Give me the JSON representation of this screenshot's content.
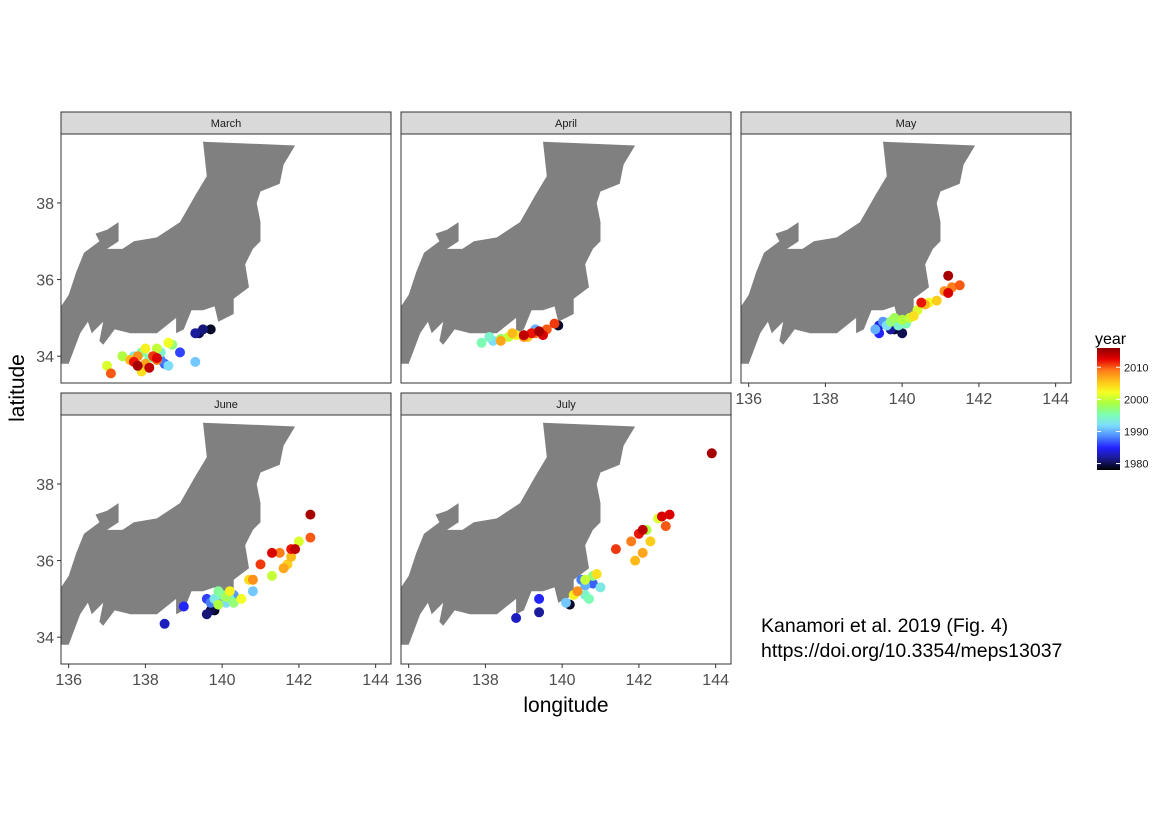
{
  "chart_data": {
    "type": "scatter",
    "xlabel": "longitude",
    "ylabel": "latitude",
    "xlim": [
      135.8,
      144.4
    ],
    "ylim": [
      33.3,
      39.8
    ],
    "x_ticks": [
      136,
      138,
      140,
      142,
      144
    ],
    "y_ticks": [
      34,
      36,
      38
    ],
    "grid": false,
    "color": {
      "variable": "year",
      "range": [
        1978,
        2016
      ],
      "ticks": [
        1980,
        1990,
        2000,
        2010
      ],
      "legend_placement": "right",
      "stops": [
        "#000000",
        "#1a1a8c",
        "#2222ff",
        "#4d88ff",
        "#7ddcff",
        "#7dffb0",
        "#a8ff44",
        "#f5ff22",
        "#ffc21a",
        "#ff7a1a",
        "#e60000",
        "#8c0000"
      ]
    },
    "land_color": "#808080",
    "land_outline": [
      [
        139.5,
        39.6
      ],
      [
        141.9,
        39.5
      ],
      [
        141.6,
        39.0
      ],
      [
        141.5,
        38.5
      ],
      [
        141.0,
        38.3
      ],
      [
        140.9,
        38.0
      ],
      [
        141.0,
        37.5
      ],
      [
        141.0,
        37.0
      ],
      [
        140.8,
        36.8
      ],
      [
        140.6,
        36.4
      ],
      [
        140.7,
        35.8
      ],
      [
        140.3,
        35.5
      ],
      [
        140.3,
        35.1
      ],
      [
        139.9,
        34.9
      ],
      [
        139.8,
        35.3
      ],
      [
        139.5,
        35.2
      ],
      [
        139.2,
        35.2
      ],
      [
        139.0,
        34.7
      ],
      [
        138.8,
        34.6
      ],
      [
        138.8,
        35.0
      ],
      [
        138.3,
        34.6
      ],
      [
        137.6,
        34.6
      ],
      [
        137.2,
        34.7
      ],
      [
        136.9,
        34.3
      ],
      [
        136.8,
        34.4
      ],
      [
        136.9,
        34.9
      ],
      [
        136.6,
        34.6
      ],
      [
        136.5,
        34.9
      ],
      [
        136.3,
        34.6
      ],
      [
        136.0,
        33.8
      ],
      [
        135.8,
        33.8
      ],
      [
        135.8,
        35.3
      ],
      [
        136.0,
        35.6
      ],
      [
        136.2,
        36.2
      ],
      [
        136.4,
        36.7
      ],
      [
        136.8,
        37.0
      ],
      [
        136.7,
        37.2
      ],
      [
        137.0,
        37.3
      ],
      [
        137.3,
        37.5
      ],
      [
        137.3,
        37.0
      ],
      [
        137.0,
        36.8
      ],
      [
        137.4,
        36.8
      ],
      [
        137.7,
        37.0
      ],
      [
        138.3,
        37.1
      ],
      [
        138.9,
        37.5
      ],
      [
        139.3,
        38.2
      ],
      [
        139.6,
        38.7
      ],
      [
        139.5,
        39.6
      ]
    ],
    "panels": [
      {
        "name": "March",
        "points": [
          [
            139.7,
            34.7,
            1979
          ],
          [
            139.4,
            34.6,
            1980
          ],
          [
            139.5,
            34.7,
            1981
          ],
          [
            139.3,
            34.6,
            1982
          ],
          [
            138.9,
            34.1,
            1986
          ],
          [
            138.5,
            33.8,
            1987
          ],
          [
            138.4,
            33.9,
            1988
          ],
          [
            139.3,
            33.85,
            1991
          ],
          [
            138.6,
            33.75,
            1992
          ],
          [
            137.7,
            34.0,
            1993
          ],
          [
            138.4,
            34.1,
            1994
          ],
          [
            138.1,
            33.95,
            1995
          ],
          [
            137.9,
            34.1,
            1996
          ],
          [
            138.7,
            34.3,
            1997
          ],
          [
            137.6,
            33.9,
            1998
          ],
          [
            137.4,
            34.0,
            1999
          ],
          [
            138.3,
            34.2,
            2000
          ],
          [
            137.0,
            33.75,
            2001
          ],
          [
            138.6,
            34.35,
            2002
          ],
          [
            138.0,
            34.2,
            2003
          ],
          [
            137.9,
            33.6,
            2004
          ],
          [
            138.2,
            34.0,
            2005
          ],
          [
            137.6,
            33.9,
            2006
          ],
          [
            138.0,
            33.8,
            2007
          ],
          [
            137.8,
            34.0,
            2008
          ],
          [
            138.3,
            33.9,
            2009
          ],
          [
            137.1,
            33.55,
            2010
          ],
          [
            138.2,
            34.0,
            2011
          ],
          [
            137.7,
            33.85,
            2012
          ],
          [
            138.3,
            33.95,
            2013
          ],
          [
            138.1,
            33.7,
            2014
          ],
          [
            137.8,
            33.75,
            2015
          ]
        ]
      },
      {
        "name": "April",
        "points": [
          [
            139.9,
            34.8,
            1979
          ],
          [
            139.5,
            34.6,
            1985
          ],
          [
            139.3,
            34.7,
            1990
          ],
          [
            138.2,
            34.4,
            1992
          ],
          [
            138.1,
            34.5,
            1994
          ],
          [
            137.9,
            34.35,
            1995
          ],
          [
            138.4,
            34.45,
            1998
          ],
          [
            138.6,
            34.5,
            2000
          ],
          [
            138.8,
            34.55,
            2003
          ],
          [
            139.1,
            34.5,
            2005
          ],
          [
            138.7,
            34.6,
            2006
          ],
          [
            138.4,
            34.4,
            2007
          ],
          [
            139.0,
            34.5,
            2008
          ],
          [
            139.3,
            34.6,
            2009
          ],
          [
            139.6,
            34.7,
            2010
          ],
          [
            139.8,
            34.85,
            2011
          ],
          [
            139.2,
            34.6,
            2012
          ],
          [
            139.5,
            34.55,
            2013
          ],
          [
            139.0,
            34.55,
            2014
          ],
          [
            139.4,
            34.65,
            2015
          ]
        ]
      },
      {
        "name": "May",
        "points": [
          [
            139.8,
            34.7,
            1979
          ],
          [
            140.0,
            34.6,
            1980
          ],
          [
            139.7,
            34.7,
            1982
          ],
          [
            139.4,
            34.8,
            1984
          ],
          [
            139.4,
            34.6,
            1985
          ],
          [
            139.5,
            34.9,
            1989
          ],
          [
            139.3,
            34.7,
            1990
          ],
          [
            139.6,
            34.8,
            1992
          ],
          [
            139.9,
            34.8,
            1994
          ],
          [
            140.1,
            34.85,
            1995
          ],
          [
            139.7,
            34.9,
            1997
          ],
          [
            139.8,
            35.0,
            1998
          ],
          [
            140.0,
            34.95,
            1999
          ],
          [
            140.2,
            35.0,
            2000
          ],
          [
            140.4,
            35.2,
            2001
          ],
          [
            140.7,
            35.4,
            2002
          ],
          [
            140.3,
            35.05,
            2004
          ],
          [
            140.9,
            35.45,
            2005
          ],
          [
            140.6,
            35.35,
            2006
          ],
          [
            141.1,
            35.7,
            2008
          ],
          [
            141.3,
            35.8,
            2009
          ],
          [
            141.5,
            35.85,
            2010
          ],
          [
            140.5,
            35.4,
            2012
          ],
          [
            141.2,
            35.65,
            2013
          ],
          [
            141.2,
            36.1,
            2015
          ]
        ]
      },
      {
        "name": "June",
        "points": [
          [
            139.8,
            34.7,
            1979
          ],
          [
            139.7,
            34.7,
            1980
          ],
          [
            139.6,
            34.6,
            1981
          ],
          [
            138.5,
            34.35,
            1983
          ],
          [
            139.0,
            34.8,
            1985
          ],
          [
            139.6,
            35.0,
            1986
          ],
          [
            139.7,
            34.9,
            1988
          ],
          [
            140.3,
            35.1,
            1989
          ],
          [
            140.8,
            35.2,
            1991
          ],
          [
            140.1,
            34.9,
            1992
          ],
          [
            139.8,
            35.0,
            1993
          ],
          [
            140.2,
            35.0,
            1994
          ],
          [
            140.0,
            35.1,
            1995
          ],
          [
            139.9,
            35.2,
            1996
          ],
          [
            140.3,
            34.9,
            1997
          ],
          [
            140.1,
            35.05,
            1998
          ],
          [
            139.9,
            34.85,
            1999
          ],
          [
            141.3,
            35.6,
            2000
          ],
          [
            142.0,
            36.5,
            2001
          ],
          [
            140.5,
            35.0,
            2002
          ],
          [
            140.2,
            35.2,
            2003
          ],
          [
            140.7,
            35.5,
            2004
          ],
          [
            141.7,
            35.9,
            2005
          ],
          [
            141.8,
            36.1,
            2006
          ],
          [
            141.6,
            35.8,
            2007
          ],
          [
            140.8,
            35.5,
            2008
          ],
          [
            141.5,
            36.2,
            2009
          ],
          [
            142.3,
            36.6,
            2010
          ],
          [
            141.0,
            35.9,
            2011
          ],
          [
            141.8,
            36.3,
            2012
          ],
          [
            141.3,
            36.2,
            2013
          ],
          [
            141.9,
            36.3,
            2014
          ],
          [
            142.3,
            37.2,
            2015
          ]
        ]
      },
      {
        "name": "July",
        "points": [
          [
            140.2,
            34.85,
            1979
          ],
          [
            139.4,
            34.65,
            1982
          ],
          [
            138.8,
            34.5,
            1983
          ],
          [
            139.4,
            35.0,
            1985
          ],
          [
            140.8,
            35.4,
            1987
          ],
          [
            140.5,
            35.5,
            1988
          ],
          [
            140.6,
            35.35,
            1990
          ],
          [
            140.1,
            34.9,
            1991
          ],
          [
            141.0,
            35.3,
            1993
          ],
          [
            140.6,
            35.1,
            1994
          ],
          [
            140.7,
            35.0,
            1995
          ],
          [
            140.8,
            35.6,
            1997
          ],
          [
            142.2,
            36.8,
            1999
          ],
          [
            140.6,
            35.5,
            2000
          ],
          [
            142.5,
            37.1,
            2001
          ],
          [
            140.3,
            35.1,
            2003
          ],
          [
            140.9,
            35.65,
            2004
          ],
          [
            142.3,
            36.5,
            2005
          ],
          [
            141.9,
            36.0,
            2006
          ],
          [
            142.1,
            36.2,
            2007
          ],
          [
            140.4,
            35.2,
            2008
          ],
          [
            141.8,
            36.5,
            2009
          ],
          [
            142.7,
            36.9,
            2010
          ],
          [
            141.4,
            36.3,
            2011
          ],
          [
            142.0,
            36.7,
            2012
          ],
          [
            142.6,
            37.15,
            2013
          ],
          [
            142.8,
            37.2,
            2013
          ],
          [
            142.1,
            36.8,
            2014
          ],
          [
            143.9,
            38.8,
            2015
          ]
        ]
      }
    ]
  },
  "caption": {
    "line1": "Kanamori et al. 2019 (Fig. 4)",
    "line2": "https://doi.org/10.3354/meps13037"
  }
}
